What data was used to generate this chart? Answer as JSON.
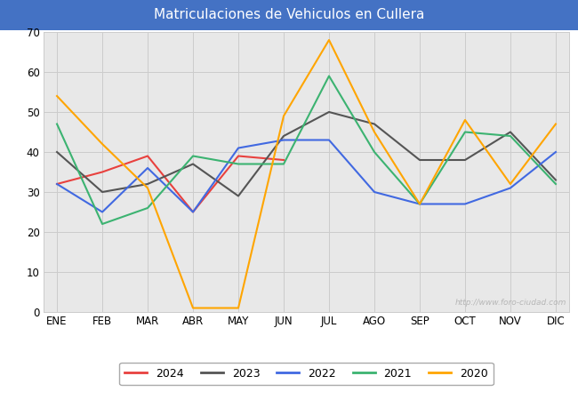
{
  "title": "Matriculaciones de Vehiculos en Cullera",
  "title_bg_color": "#4472c4",
  "title_text_color": "#ffffff",
  "months": [
    "ENE",
    "FEB",
    "MAR",
    "ABR",
    "MAY",
    "JUN",
    "JUL",
    "AGO",
    "SEP",
    "OCT",
    "NOV",
    "DIC"
  ],
  "series": {
    "2024": {
      "color": "#e8413e",
      "data": [
        32,
        35,
        39,
        25,
        39,
        38,
        null,
        null,
        null,
        null,
        null,
        null
      ]
    },
    "2023": {
      "color": "#555555",
      "data": [
        40,
        30,
        32,
        37,
        29,
        44,
        50,
        47,
        38,
        38,
        45,
        33
      ]
    },
    "2022": {
      "color": "#4169e1",
      "data": [
        32,
        25,
        36,
        25,
        41,
        43,
        43,
        30,
        27,
        27,
        31,
        40
      ]
    },
    "2021": {
      "color": "#3cb371",
      "data": [
        47,
        22,
        26,
        39,
        37,
        37,
        59,
        40,
        27,
        45,
        44,
        32
      ]
    },
    "2020": {
      "color": "#ffa500",
      "data": [
        54,
        42,
        31,
        1,
        1,
        49,
        68,
        45,
        27,
        48,
        32,
        47
      ]
    }
  },
  "ylim": [
    0,
    70
  ],
  "yticks": [
    0,
    10,
    20,
    30,
    40,
    50,
    60,
    70
  ],
  "grid_color": "#cccccc",
  "plot_bg_color": "#e8e8e8",
  "watermark": "http://www.foro-ciudad.com",
  "legend_order": [
    "2024",
    "2023",
    "2022",
    "2021",
    "2020"
  ]
}
